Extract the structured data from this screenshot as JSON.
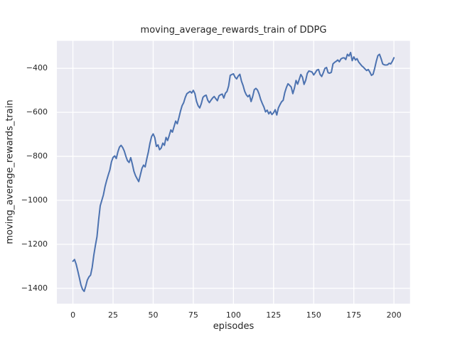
{
  "chart_data": {
    "type": "line",
    "title": "moving_average_rewards_train of DDPG",
    "xlabel": "episodes",
    "ylabel": "moving_average_rewards_train",
    "legend": null,
    "grid": true,
    "xlim": [
      -10,
      210
    ],
    "ylim": [
      -1470,
      -275
    ],
    "xticks": [
      0,
      25,
      50,
      75,
      100,
      125,
      150,
      175,
      200
    ],
    "yticks": [
      -400,
      -600,
      -800,
      -1000,
      -1200,
      -1400
    ],
    "colors": {
      "line": "#4C72B0",
      "plot_background": "#EAEAF2",
      "grid": "#FFFFFF",
      "text": "#262626",
      "figure_background": "#FFFFFF"
    },
    "x": [
      0,
      1,
      2,
      3,
      4,
      5,
      6,
      7,
      8,
      9,
      10,
      11,
      12,
      13,
      14,
      15,
      16,
      17,
      18,
      19,
      20,
      21,
      22,
      23,
      24,
      25,
      26,
      27,
      28,
      29,
      30,
      31,
      32,
      33,
      34,
      35,
      36,
      37,
      38,
      39,
      40,
      41,
      42,
      43,
      44,
      45,
      46,
      47,
      48,
      49,
      50,
      51,
      52,
      53,
      54,
      55,
      56,
      57,
      58,
      59,
      60,
      61,
      62,
      63,
      64,
      65,
      66,
      67,
      68,
      69,
      70,
      71,
      72,
      73,
      74,
      75,
      76,
      77,
      78,
      79,
      80,
      81,
      82,
      83,
      84,
      85,
      86,
      87,
      88,
      89,
      90,
      91,
      92,
      93,
      94,
      95,
      96,
      97,
      98,
      99,
      100,
      101,
      102,
      103,
      104,
      105,
      106,
      107,
      108,
      109,
      110,
      111,
      112,
      113,
      114,
      115,
      116,
      117,
      118,
      119,
      120,
      121,
      122,
      123,
      124,
      125,
      126,
      127,
      128,
      129,
      130,
      131,
      132,
      133,
      134,
      135,
      136,
      137,
      138,
      139,
      140,
      141,
      142,
      143,
      144,
      145,
      146,
      147,
      148,
      149,
      150,
      151,
      152,
      153,
      154,
      155,
      156,
      157,
      158,
      159,
      160,
      161,
      162,
      163,
      164,
      165,
      166,
      167,
      168,
      169,
      170,
      171,
      172,
      173,
      174,
      175,
      176,
      177,
      178,
      179,
      180,
      181,
      182,
      183,
      184,
      185,
      186,
      187,
      188,
      189,
      190,
      191,
      192,
      193,
      194,
      195,
      196,
      197,
      198,
      199,
      200
    ],
    "y": [
      -1277,
      -1269,
      -1290,
      -1320,
      -1352,
      -1385,
      -1405,
      -1414,
      -1390,
      -1362,
      -1348,
      -1340,
      -1305,
      -1250,
      -1205,
      -1165,
      -1090,
      -1025,
      -1000,
      -975,
      -938,
      -910,
      -885,
      -862,
      -825,
      -805,
      -798,
      -810,
      -780,
      -758,
      -750,
      -760,
      -776,
      -800,
      -820,
      -828,
      -806,
      -835,
      -868,
      -888,
      -902,
      -915,
      -885,
      -855,
      -840,
      -848,
      -812,
      -780,
      -740,
      -710,
      -698,
      -715,
      -755,
      -748,
      -770,
      -762,
      -740,
      -750,
      -714,
      -728,
      -705,
      -680,
      -690,
      -665,
      -640,
      -652,
      -625,
      -595,
      -570,
      -556,
      -532,
      -515,
      -510,
      -505,
      -512,
      -500,
      -515,
      -550,
      -570,
      -580,
      -560,
      -532,
      -525,
      -522,
      -545,
      -556,
      -545,
      -535,
      -528,
      -538,
      -547,
      -525,
      -520,
      -517,
      -535,
      -513,
      -505,
      -480,
      -432,
      -428,
      -425,
      -440,
      -448,
      -435,
      -427,
      -458,
      -478,
      -504,
      -520,
      -529,
      -521,
      -551,
      -528,
      -497,
      -491,
      -499,
      -517,
      -542,
      -560,
      -576,
      -598,
      -590,
      -607,
      -597,
      -610,
      -602,
      -588,
      -612,
      -580,
      -565,
      -552,
      -545,
      -510,
      -487,
      -470,
      -477,
      -485,
      -515,
      -490,
      -455,
      -472,
      -450,
      -428,
      -440,
      -473,
      -455,
      -423,
      -412,
      -414,
      -417,
      -430,
      -420,
      -408,
      -405,
      -428,
      -437,
      -420,
      -400,
      -396,
      -420,
      -422,
      -418,
      -380,
      -373,
      -368,
      -362,
      -370,
      -357,
      -353,
      -352,
      -360,
      -336,
      -344,
      -328,
      -365,
      -348,
      -362,
      -356,
      -371,
      -380,
      -389,
      -395,
      -403,
      -410,
      -405,
      -417,
      -432,
      -427,
      -400,
      -368,
      -342,
      -336,
      -356,
      -380,
      -384,
      -385,
      -384,
      -377,
      -380,
      -368,
      -352
    ]
  }
}
